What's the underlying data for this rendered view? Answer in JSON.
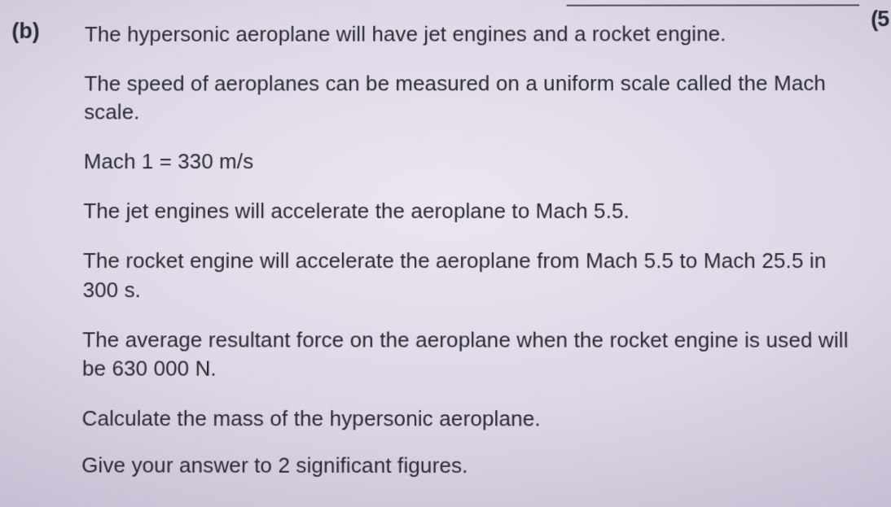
{
  "question_label": "(b)",
  "top_right_mark": "(5",
  "paragraphs": {
    "p1": "The hypersonic aeroplane will have jet engines and a rocket engine.",
    "p2": "The speed of aeroplanes can be measured on a uniform scale called the Mach scale.",
    "p3": "Mach 1 = 330 m/s",
    "p4": "The jet engines will accelerate the aeroplane to Mach 5.5.",
    "p5": "The rocket engine will accelerate the aeroplane from Mach 5.5 to Mach 25.5 in 300 s.",
    "p6": "The average resultant force on the aeroplane when the rocket engine is used will be 630 000 N.",
    "p7": "Calculate the mass of the hypersonic aeroplane.",
    "p8": "Give your answer to 2 significant figures."
  },
  "colors": {
    "text": "#2a2a32",
    "rule": "#3a3a44"
  },
  "font_sizes": {
    "label": 27,
    "body": 26
  }
}
